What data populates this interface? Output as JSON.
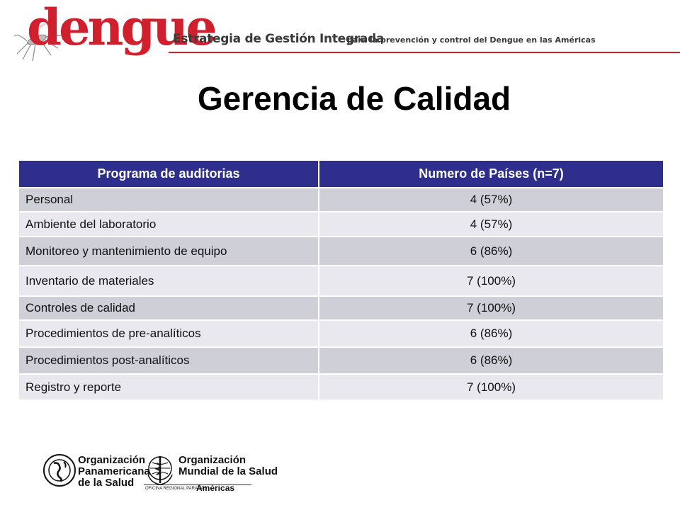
{
  "header": {
    "brand": "dengue",
    "strategy_title": "Estrategia de Gestión Integrada",
    "strategy_subtitle": "para la prevención y control del Dengue en las Américas",
    "accent_color": "#d0202e"
  },
  "title": "Gerencia de Calidad",
  "table": {
    "header_color": "#2e2f8c",
    "columns": [
      "Programa de auditorias",
      "Numero de Países (n=7)"
    ],
    "rows": [
      {
        "program": "Personal",
        "countries": "4 (57%)"
      },
      {
        "program": "Ambiente del laboratorio",
        "countries": "4 (57%)"
      },
      {
        "program": "Monitoreo y mantenimiento de equipo",
        "countries": "6 (86%)"
      },
      {
        "program": "Inventario de materiales",
        "countries": "7 (100%)"
      },
      {
        "program": "Controles de calidad",
        "countries": "7 (100%)"
      },
      {
        "program": "Procedimientos de pre-analíticos",
        "countries": "6 (86%)"
      },
      {
        "program": "Procedimientos post-analíticos",
        "countries": "6 (86%)"
      },
      {
        "program": "Registro y reporte",
        "countries": "7 (100%)"
      }
    ]
  },
  "footer": {
    "paho_line1": "Organización",
    "paho_line2": "Panamericana",
    "paho_line3": "de la Salud",
    "who_line1": "Organización",
    "who_line2": "Mundial de la Salud",
    "who_small": "OFICINA REGIONAL PARA LAS",
    "who_region": "Américas"
  }
}
